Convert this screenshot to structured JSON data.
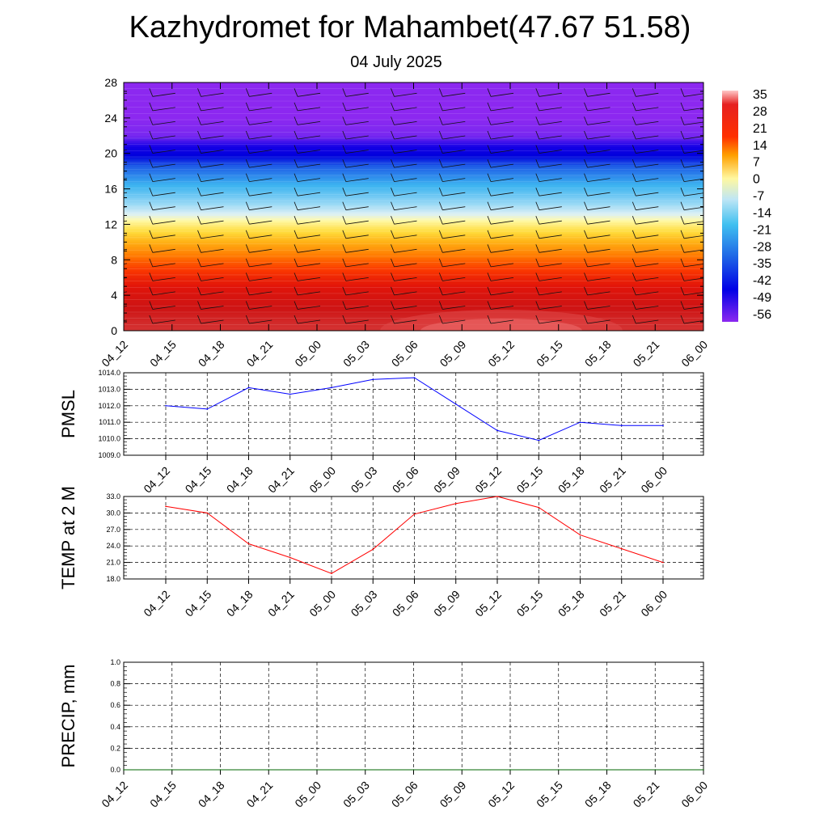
{
  "title": "Kazhydromet for Mahambet(47.67 51.58)",
  "subtitle": "04 July 2025",
  "time_labels": [
    "04_12",
    "04_15",
    "04_18",
    "04_21",
    "05_00",
    "05_03",
    "05_06",
    "05_09",
    "05_12",
    "05_15",
    "05_18",
    "05_21",
    "06_00"
  ],
  "chart_data": [
    {
      "type": "heatmap",
      "name": "temperature-cross-section",
      "x": [
        "04_12",
        "04_15",
        "04_18",
        "04_21",
        "05_00",
        "05_03",
        "05_06",
        "05_09",
        "05_12",
        "05_15",
        "05_18",
        "05_21",
        "06_00"
      ],
      "ylim": [
        0,
        28
      ],
      "yticks": [
        0,
        4,
        8,
        12,
        16,
        20,
        24,
        28
      ],
      "colorbar": {
        "ticks": [
          35,
          28,
          21,
          14,
          7,
          0,
          -7,
          -14,
          -21,
          -28,
          -35,
          -42,
          -49,
          -56
        ],
        "range": [
          -60,
          38
        ]
      },
      "profile_levels": [
        0,
        2,
        4,
        6,
        8,
        10,
        12,
        13,
        14,
        16,
        18,
        20,
        22,
        24,
        26,
        28
      ],
      "profile_temps": [
        32,
        29,
        25,
        19,
        12,
        3,
        -7,
        -13,
        -18,
        -28,
        -37,
        -46,
        -56,
        -60,
        -60,
        -60
      ],
      "wind_barbs": true
    },
    {
      "type": "line",
      "name": "PMSL",
      "ylabel": "PMSL",
      "x": [
        "04_12",
        "04_15",
        "04_18",
        "04_21",
        "05_00",
        "05_03",
        "05_06",
        "05_09",
        "05_12",
        "05_15",
        "05_18",
        "05_21",
        "06_00"
      ],
      "values": [
        1012.0,
        1011.8,
        1013.1,
        1012.7,
        1013.1,
        1013.6,
        1013.7,
        1012.1,
        1010.5,
        1009.9,
        1011.0,
        1010.8,
        1010.8
      ],
      "ylim": [
        1009.0,
        1014.0
      ],
      "yticks": [
        "1009.0",
        "1010.0",
        "1011.0",
        "1012.0",
        "1013.0",
        "1014.0"
      ],
      "color": "#0000ff",
      "grid": true
    },
    {
      "type": "line",
      "name": "TEMP at 2 M",
      "ylabel": "TEMP at 2 M",
      "x": [
        "04_12",
        "04_15",
        "04_18",
        "04_21",
        "05_00",
        "05_03",
        "05_06",
        "05_09",
        "05_12",
        "05_15",
        "05_18",
        "05_21",
        "06_00"
      ],
      "values": [
        31.2,
        30.0,
        24.4,
        21.9,
        19.0,
        23.4,
        29.8,
        31.7,
        33.0,
        31.0,
        26.0,
        23.5,
        21.0
      ],
      "ylim": [
        18.0,
        33.0
      ],
      "yticks": [
        "18.0",
        "21.0",
        "24.0",
        "27.0",
        "30.0",
        "33.0"
      ],
      "color": "#ff0000",
      "grid": true
    },
    {
      "type": "line",
      "name": "PRECIP, mm",
      "ylabel": "PRECIP, mm",
      "x": [
        "04_12",
        "04_15",
        "04_18",
        "04_21",
        "05_00",
        "05_03",
        "05_06",
        "05_09",
        "05_12",
        "05_15",
        "05_18",
        "05_21",
        "06_00"
      ],
      "values": [
        0,
        0,
        0,
        0,
        0,
        0,
        0,
        0,
        0,
        0,
        0,
        0,
        0
      ],
      "ylim": [
        0.0,
        1.0
      ],
      "yticks": [
        "0.0",
        "0.2",
        "0.4",
        "0.6",
        "0.8",
        "1.0"
      ],
      "color": "#006400",
      "grid": true
    }
  ]
}
